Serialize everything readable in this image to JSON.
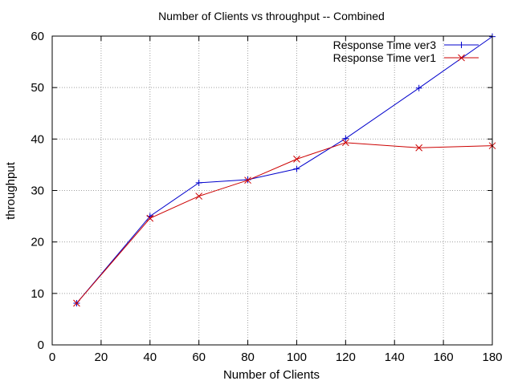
{
  "chart_data": {
    "type": "line",
    "title": "Number of Clients vs throughput -- Combined",
    "xlabel": "Number of Clients",
    "ylabel": "throughput",
    "xlim": [
      0,
      180
    ],
    "ylim": [
      0,
      60
    ],
    "xticks": [
      0,
      20,
      40,
      60,
      80,
      100,
      120,
      140,
      160,
      180
    ],
    "yticks": [
      0,
      10,
      20,
      30,
      40,
      50,
      60
    ],
    "grid": true,
    "legend_position": "top-right",
    "series": [
      {
        "name": "Response Time ver3",
        "color": "#0000cc",
        "marker": "plus",
        "x": [
          10,
          40,
          60,
          80,
          100,
          120,
          150,
          180
        ],
        "y": [
          8.1,
          25.0,
          31.5,
          32.1,
          34.2,
          40.1,
          49.9,
          59.9
        ]
      },
      {
        "name": "Response Time ver1",
        "color": "#cc0000",
        "marker": "cross",
        "x": [
          10,
          40,
          60,
          80,
          100,
          120,
          150,
          180
        ],
        "y": [
          8.1,
          24.6,
          28.9,
          32.0,
          36.1,
          39.3,
          38.3,
          38.7
        ]
      }
    ]
  }
}
